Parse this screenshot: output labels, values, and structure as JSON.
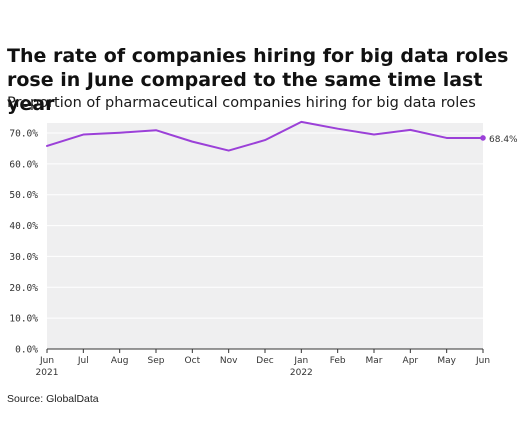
{
  "header": {
    "title": "The rate of companies hiring for big data roles rose in June compared to the same time last year",
    "subtitle": "Proportion of pharmaceutical companies hiring for big data roles"
  },
  "footer": {
    "source": "Source: GlobalData"
  },
  "colors": {
    "line": "#9b40d8",
    "plot_background": "#efeff0",
    "gridline": "#ffffff",
    "baseline": "#333333"
  },
  "chart_data": {
    "type": "area",
    "title": "The rate of companies hiring for big data roles rose in June compared to the same time last year",
    "subtitle": "Proportion of pharmaceutical companies hiring for big data roles",
    "xlabel": "",
    "ylabel": "",
    "categories": [
      [
        "Jun",
        "2021"
      ],
      [
        "Jul",
        ""
      ],
      [
        "Aug",
        ""
      ],
      [
        "Sep",
        ""
      ],
      [
        "Oct",
        ""
      ],
      [
        "Nov",
        ""
      ],
      [
        "Dec",
        ""
      ],
      [
        "Jan",
        "2022"
      ],
      [
        "Feb",
        ""
      ],
      [
        "Mar",
        ""
      ],
      [
        "Apr",
        ""
      ],
      [
        "May",
        ""
      ],
      [
        "Jun",
        ""
      ]
    ],
    "series": [
      {
        "values": [
          65.8,
          69.5,
          70.1,
          70.9,
          67.2,
          64.3,
          67.7,
          73.6,
          71.4,
          69.5,
          71.0,
          68.4,
          68.4
        ]
      }
    ],
    "ylim": [
      0,
      70
    ],
    "yticks": [
      {
        "value": 0,
        "label": "0.0%"
      },
      {
        "value": 10,
        "label": "10.0%"
      },
      {
        "value": 20,
        "label": "20.0%"
      },
      {
        "value": 30,
        "label": "30.0%"
      },
      {
        "value": 40,
        "label": "40.0%"
      },
      {
        "value": 50,
        "label": "50.0%"
      },
      {
        "value": 60,
        "label": "60.0%"
      },
      {
        "value": 70,
        "label": "70.0%"
      }
    ],
    "end_label": "68.4%",
    "grid": true,
    "legend": "none"
  }
}
